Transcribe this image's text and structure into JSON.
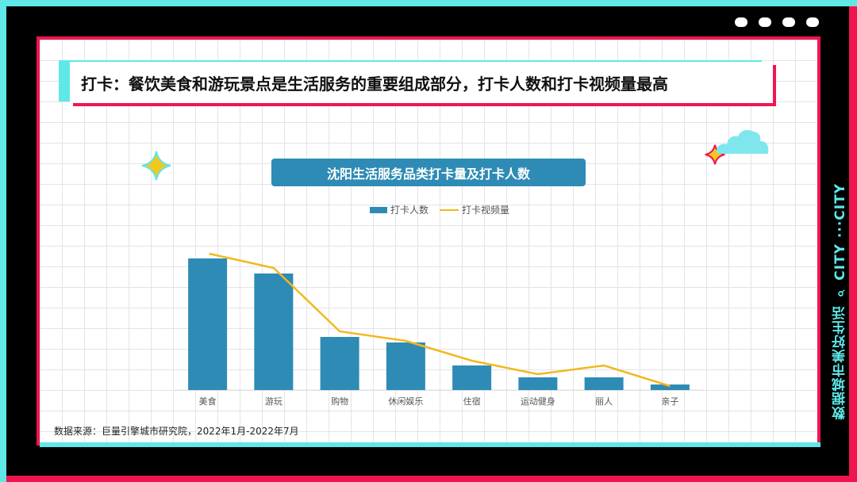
{
  "header": {
    "title": "打卡：餐饮美食和游玩景点是生活服务的重要组成部分，打卡人数和打卡视频量最高"
  },
  "side_text": "数据城市美好生活 ⌕ CITY ···CITY",
  "source": "数据来源：巨量引擎城市研究院，2022年1月-2022年7月",
  "colors": {
    "bar": "#2e8bb5",
    "line": "#f2b81e",
    "cyan": "#5ee8e8",
    "red": "#f0154f"
  },
  "chart_data": {
    "type": "bar",
    "title": "沈阳生活服务品类打卡量及打卡人数",
    "categories": [
      "美食",
      "游玩",
      "购物",
      "休闲娱乐",
      "住宿",
      "运动健身",
      "丽人",
      "亲子"
    ],
    "series": [
      {
        "name": "打卡人数",
        "type": "bar",
        "values": [
          166,
          147,
          67,
          60,
          31,
          16,
          16,
          7
        ]
      },
      {
        "name": "打卡视频量",
        "type": "line",
        "values": [
          172,
          154,
          74,
          62,
          37,
          20,
          31,
          5
        ]
      }
    ],
    "ylim": [
      0,
      180
    ],
    "legend": "top-center",
    "grid": false
  }
}
